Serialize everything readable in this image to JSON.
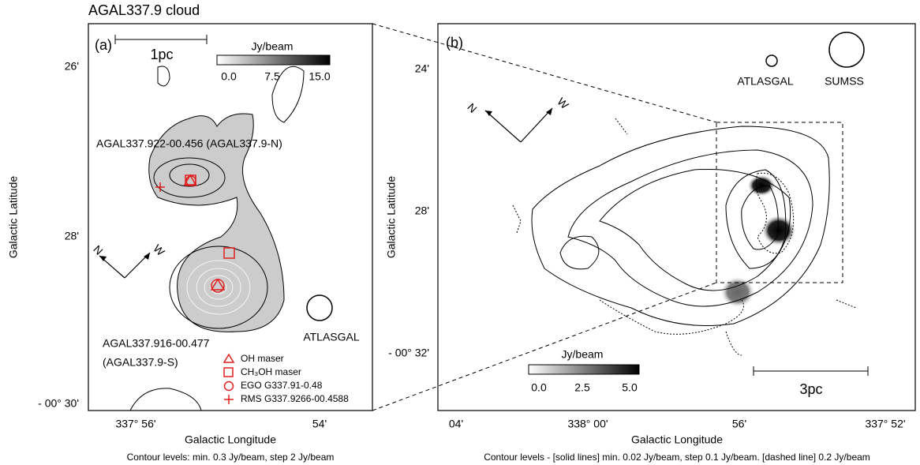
{
  "title": "AGAL337.9 cloud",
  "panel_a": {
    "label": "(a)",
    "scale_bar": "1pc",
    "colorbar": {
      "unit": "Jy/beam",
      "ticks": [
        "0.0",
        "7.5",
        "15.0"
      ]
    },
    "compass": {
      "n": "N",
      "w": "W"
    },
    "sources": [
      "AGAL337.922-00.456 (AGAL337.9-N)",
      "AGAL337.916-00.477",
      "(AGAL337.9-S)"
    ],
    "beam": "ATLASGAL",
    "legend": [
      "OH maser",
      "CH₃OH maser",
      "EGO G337.91-0.48",
      "RMS G337.9266-00.4588"
    ],
    "yticks": [
      "26'",
      "28'",
      "- 00° 30'"
    ],
    "xticks": [
      "337° 56'",
      "54'"
    ],
    "xlabel": "Galactic Longitude",
    "ylabel": "Galactic Latitude",
    "caption": "Contour levels:  min.  0.3 Jy/beam,  step  2 Jy/beam"
  },
  "panel_b": {
    "label": "(b)",
    "scale_bar": "3pc",
    "colorbar": {
      "unit": "Jy/beam",
      "ticks": [
        "0.0",
        "2.5",
        "5.0"
      ]
    },
    "compass": {
      "n": "N",
      "w": "W"
    },
    "beams": [
      "ATLASGAL",
      "SUMSS"
    ],
    "yticks": [
      "24'",
      "28'",
      "- 00° 32'"
    ],
    "xticks": [
      "04'",
      "338° 00'",
      "56'",
      "337° 52'"
    ],
    "xlabel": "Galactic Longitude",
    "ylabel": "Galactic Latitude",
    "caption": "Contour levels -  [solid lines] min. 0.02 Jy/beam,  step 0.1 Jy/beam. [dashed line] 0.2 Jy/beam"
  }
}
